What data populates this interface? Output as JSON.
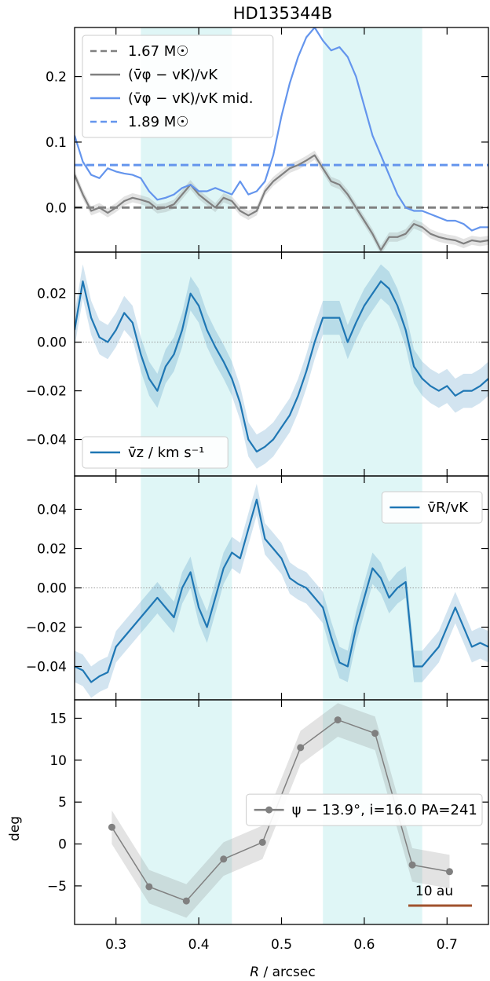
{
  "chart_data": {
    "title": "HD135344B",
    "xlabel_italic": "R",
    "xlabel_rest": " / arcsec",
    "xlim": [
      0.25,
      0.75
    ],
    "xticks": [
      0.3,
      0.4,
      0.5,
      0.6,
      0.7
    ],
    "xtick_labels": [
      "0.3",
      "0.4",
      "0.5",
      "0.6",
      "0.7"
    ],
    "shaded_bands": [
      [
        0.33,
        0.44
      ],
      [
        0.55,
        0.67
      ]
    ],
    "band_color": "#dff6f6",
    "panels": [
      {
        "type": "line",
        "ylim": [
          -0.068,
          0.275
        ],
        "yticks": [
          0.0,
          0.1,
          0.2
        ],
        "ytick_labels": [
          "0.0",
          "0.1",
          "0.2"
        ],
        "legend_loc": "upper-left",
        "legend": [
          {
            "label": "1.67 M☉",
            "color": "#808080",
            "style": "dashed"
          },
          {
            "label": "(v̄φ − vK)/vK",
            "color": "#808080",
            "style": "solid"
          },
          {
            "label": "(v̄φ − vK)/vK mid.",
            "color": "#6495ed",
            "style": "solid"
          },
          {
            "label": "1.89 M☉",
            "color": "#6495ed",
            "style": "dashed"
          }
        ],
        "hlines": [
          {
            "y": 0.0,
            "color": "#808080",
            "style": "dashed"
          },
          {
            "y": 0.065,
            "color": "#6495ed",
            "style": "dashed"
          }
        ],
        "series": [
          {
            "color": "#808080",
            "band": 0.007,
            "x": [
              0.25,
              0.26,
              0.27,
              0.28,
              0.29,
              0.3,
              0.31,
              0.32,
              0.33,
              0.34,
              0.35,
              0.36,
              0.37,
              0.38,
              0.39,
              0.4,
              0.41,
              0.42,
              0.43,
              0.44,
              0.45,
              0.46,
              0.47,
              0.48,
              0.49,
              0.5,
              0.51,
              0.52,
              0.53,
              0.54,
              0.55,
              0.56,
              0.57,
              0.58,
              0.59,
              0.6,
              0.61,
              0.62,
              0.63,
              0.64,
              0.65,
              0.66,
              0.67,
              0.68,
              0.69,
              0.7,
              0.71,
              0.72,
              0.73,
              0.74,
              0.75
            ],
            "y": [
              0.05,
              0.02,
              -0.005,
              0.0,
              -0.008,
              0.0,
              0.01,
              0.015,
              0.012,
              0.008,
              -0.002,
              0.0,
              0.005,
              0.02,
              0.035,
              0.02,
              0.01,
              0.0,
              0.015,
              0.01,
              -0.005,
              -0.012,
              -0.005,
              0.025,
              0.04,
              0.05,
              0.06,
              0.065,
              0.072,
              0.08,
              0.06,
              0.04,
              0.035,
              0.02,
              0.0,
              -0.02,
              -0.04,
              -0.065,
              -0.045,
              -0.045,
              -0.04,
              -0.025,
              -0.03,
              -0.04,
              -0.045,
              -0.048,
              -0.05,
              -0.055,
              -0.05,
              -0.052,
              -0.05
            ]
          },
          {
            "color": "#6495ed",
            "band": 0,
            "x": [
              0.25,
              0.26,
              0.27,
              0.28,
              0.29,
              0.3,
              0.31,
              0.32,
              0.33,
              0.34,
              0.35,
              0.36,
              0.37,
              0.38,
              0.39,
              0.4,
              0.41,
              0.42,
              0.43,
              0.44,
              0.45,
              0.46,
              0.47,
              0.48,
              0.49,
              0.5,
              0.51,
              0.52,
              0.53,
              0.54,
              0.55,
              0.56,
              0.57,
              0.58,
              0.59,
              0.6,
              0.61,
              0.62,
              0.63,
              0.64,
              0.65,
              0.66,
              0.67,
              0.68,
              0.69,
              0.7,
              0.71,
              0.72,
              0.73,
              0.74,
              0.75
            ],
            "y": [
              0.11,
              0.07,
              0.05,
              0.045,
              0.06,
              0.055,
              0.052,
              0.05,
              0.045,
              0.025,
              0.012,
              0.015,
              0.02,
              0.03,
              0.035,
              0.025,
              0.025,
              0.03,
              0.025,
              0.02,
              0.04,
              0.02,
              0.025,
              0.04,
              0.08,
              0.14,
              0.19,
              0.23,
              0.26,
              0.275,
              0.255,
              0.24,
              0.245,
              0.23,
              0.2,
              0.155,
              0.11,
              0.08,
              0.05,
              0.02,
              0.0,
              -0.005,
              -0.005,
              -0.01,
              -0.015,
              -0.02,
              -0.02,
              -0.025,
              -0.035,
              -0.03,
              -0.03
            ]
          }
        ]
      },
      {
        "type": "line",
        "ylim": [
          -0.055,
          0.037
        ],
        "yticks": [
          -0.04,
          -0.02,
          0.0,
          0.02
        ],
        "ytick_labels": [
          "−0.04",
          "−0.02",
          "0.00",
          "0.02"
        ],
        "zero_line": true,
        "legend_loc": "lower-left",
        "legend": [
          {
            "label": "v̄z / km s⁻¹",
            "color": "#1f77b4",
            "style": "solid"
          }
        ],
        "series": [
          {
            "color": "#1f77b4",
            "band": 0.007,
            "x": [
              0.25,
              0.26,
              0.27,
              0.28,
              0.29,
              0.3,
              0.31,
              0.32,
              0.33,
              0.34,
              0.35,
              0.36,
              0.37,
              0.38,
              0.39,
              0.4,
              0.41,
              0.42,
              0.43,
              0.44,
              0.45,
              0.46,
              0.47,
              0.48,
              0.49,
              0.5,
              0.51,
              0.52,
              0.53,
              0.54,
              0.55,
              0.56,
              0.57,
              0.58,
              0.59,
              0.6,
              0.61,
              0.62,
              0.63,
              0.64,
              0.65,
              0.66,
              0.67,
              0.68,
              0.69,
              0.7,
              0.71,
              0.72,
              0.73,
              0.74,
              0.75
            ],
            "y": [
              0.005,
              0.025,
              0.01,
              0.002,
              0.0,
              0.005,
              0.012,
              0.008,
              -0.005,
              -0.015,
              -0.02,
              -0.01,
              -0.005,
              0.005,
              0.02,
              0.015,
              0.005,
              -0.002,
              -0.008,
              -0.015,
              -0.025,
              -0.04,
              -0.045,
              -0.043,
              -0.04,
              -0.035,
              -0.03,
              -0.022,
              -0.012,
              0.0,
              0.01,
              0.01,
              0.01,
              0.0,
              0.008,
              0.015,
              0.02,
              0.025,
              0.022,
              0.015,
              0.005,
              -0.01,
              -0.015,
              -0.018,
              -0.02,
              -0.018,
              -0.022,
              -0.02,
              -0.02,
              -0.018,
              -0.015
            ]
          }
        ]
      },
      {
        "type": "line",
        "ylim": [
          -0.057,
          0.057
        ],
        "yticks": [
          -0.04,
          -0.02,
          0.0,
          0.02,
          0.04
        ],
        "ytick_labels": [
          "−0.04",
          "−0.02",
          "0.00",
          "0.02",
          "0.04"
        ],
        "zero_line": true,
        "legend_loc": "upper-right",
        "legend": [
          {
            "label": "v̄R/vK",
            "color": "#1f77b4",
            "style": "solid"
          }
        ],
        "series": [
          {
            "color": "#1f77b4",
            "band": 0.008,
            "x": [
              0.25,
              0.26,
              0.27,
              0.28,
              0.29,
              0.3,
              0.31,
              0.32,
              0.33,
              0.34,
              0.35,
              0.36,
              0.37,
              0.38,
              0.39,
              0.4,
              0.41,
              0.42,
              0.43,
              0.44,
              0.45,
              0.46,
              0.47,
              0.48,
              0.49,
              0.5,
              0.51,
              0.52,
              0.53,
              0.54,
              0.55,
              0.56,
              0.57,
              0.58,
              0.59,
              0.6,
              0.61,
              0.62,
              0.63,
              0.64,
              0.65,
              0.66,
              0.67,
              0.68,
              0.69,
              0.7,
              0.71,
              0.72,
              0.73,
              0.74,
              0.75
            ],
            "y": [
              -0.04,
              -0.042,
              -0.048,
              -0.045,
              -0.043,
              -0.03,
              -0.025,
              -0.02,
              -0.015,
              -0.01,
              -0.005,
              -0.01,
              -0.015,
              0.0,
              0.008,
              -0.01,
              -0.02,
              -0.005,
              0.01,
              0.018,
              0.015,
              0.03,
              0.045,
              0.025,
              0.02,
              0.015,
              0.005,
              0.002,
              0.0,
              -0.005,
              -0.01,
              -0.025,
              -0.038,
              -0.04,
              -0.02,
              -0.005,
              0.01,
              0.005,
              -0.005,
              0.0,
              0.003,
              -0.04,
              -0.04,
              -0.035,
              -0.03,
              -0.02,
              -0.01,
              -0.02,
              -0.03,
              -0.028,
              -0.03
            ]
          }
        ]
      },
      {
        "type": "line",
        "ylim": [
          -9.6,
          17.2
        ],
        "yticks": [
          -5,
          0,
          5,
          10,
          15
        ],
        "ytick_labels": [
          "−5",
          "0",
          "5",
          "10",
          "15"
        ],
        "ylabel": "deg",
        "legend_loc": "center-right",
        "legend": [
          {
            "label": "ψ − 13.9°, i=16.0 PA=241",
            "color": "#808080",
            "style": "marker-line"
          }
        ],
        "series": [
          {
            "color": "#808080",
            "band": 2.0,
            "markers": true,
            "x": [
              0.295,
              0.34,
              0.385,
              0.43,
              0.477,
              0.523,
              0.568,
              0.613,
              0.658,
              0.703
            ],
            "y": [
              2.0,
              -5.1,
              -6.8,
              -1.8,
              0.2,
              11.5,
              14.8,
              13.2,
              -2.5,
              -3.3
            ]
          }
        ]
      }
    ]
  },
  "scale_bar": {
    "label": "10 au",
    "color": "#a0522d"
  }
}
